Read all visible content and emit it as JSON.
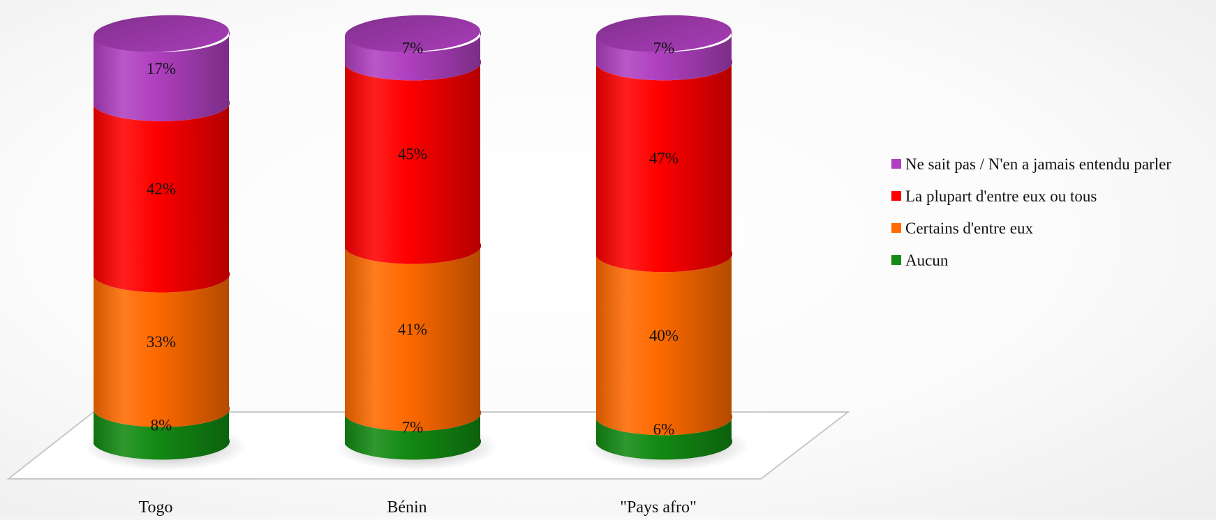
{
  "chart_data": {
    "type": "bar",
    "stacked": true,
    "style": "3d-cylinder",
    "categories": [
      "Togo",
      "Bénin",
      "\"Pays afro\""
    ],
    "series": [
      {
        "name": "Aucun",
        "color": "#138a13",
        "values": [
          8,
          7,
          6
        ],
        "labels": [
          "8%",
          "7%",
          "6%"
        ]
      },
      {
        "name": "Certains d'entre eux",
        "color": "#ff6a00",
        "values": [
          33,
          41,
          40
        ],
        "labels": [
          "33%",
          "41%",
          "40%"
        ]
      },
      {
        "name": "La plupart d'entre eux ou tous",
        "color": "#ff0000",
        "values": [
          42,
          45,
          47
        ],
        "labels": [
          "42%",
          "45%",
          "47%"
        ]
      },
      {
        "name": "Ne sait pas / N'en a jamais entendu parler",
        "color": "#b040c0",
        "values": [
          17,
          7,
          7
        ],
        "labels": [
          "17%",
          "7%",
          "7%"
        ]
      }
    ],
    "ylim": [
      0,
      100
    ],
    "title": "",
    "xlabel": "",
    "ylabel": "",
    "grid": false,
    "legend_position": "right"
  }
}
